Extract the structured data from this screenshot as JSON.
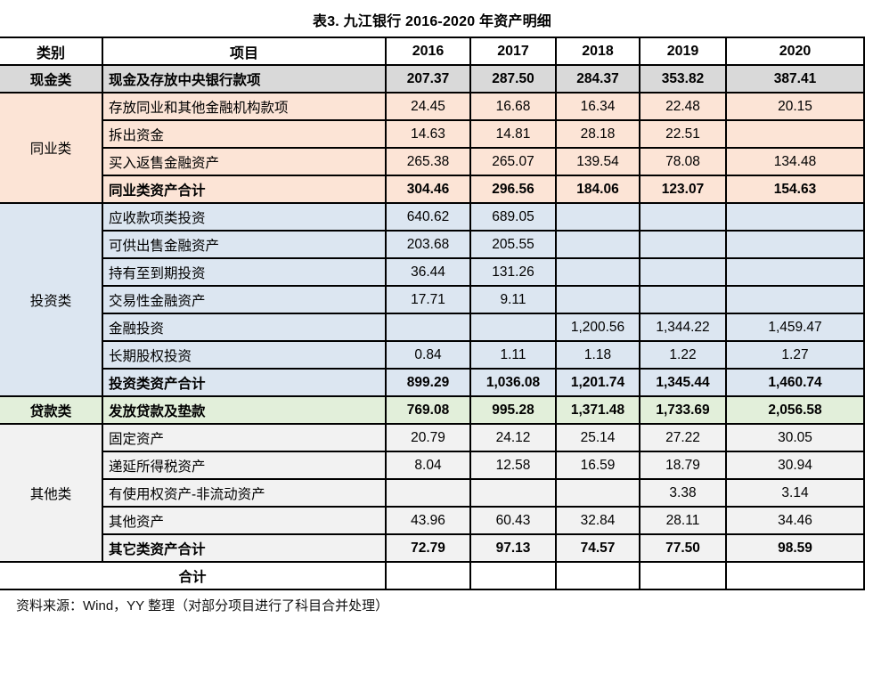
{
  "title": "表3. 九江银行 2016-2020 年资产明细",
  "columns": [
    "类别",
    "项目",
    "2016",
    "2017",
    "2018",
    "2019",
    "2020"
  ],
  "colors": {
    "cash_bg": "#d9d9d9",
    "interbank_bg": "#fce4d6",
    "investment_bg": "#dce6f1",
    "loan_bg": "#e2efda",
    "other_bg": "#f2f2f2",
    "total_bg": "#ffffff",
    "border": "#000000"
  },
  "sections": [
    {
      "category": "现金类",
      "category_bold": true,
      "style": "cash_bg",
      "rows": [
        {
          "item": "现金及存放中央银行款项",
          "bold": true,
          "values": [
            "207.37",
            "287.50",
            "284.37",
            "353.82",
            "387.41"
          ]
        }
      ]
    },
    {
      "category": "同业类",
      "category_bold": false,
      "style": "interbank_bg",
      "rows": [
        {
          "item": "存放同业和其他金融机构款项",
          "bold": false,
          "values": [
            "24.45",
            "16.68",
            "16.34",
            "22.48",
            "20.15"
          ]
        },
        {
          "item": "拆出资金",
          "bold": false,
          "values": [
            "14.63",
            "14.81",
            "28.18",
            "22.51",
            ""
          ]
        },
        {
          "item": "买入返售金融资产",
          "bold": false,
          "values": [
            "265.38",
            "265.07",
            "139.54",
            "78.08",
            "134.48"
          ]
        },
        {
          "item": "同业类资产合计",
          "bold": true,
          "values": [
            "304.46",
            "296.56",
            "184.06",
            "123.07",
            "154.63"
          ]
        }
      ]
    },
    {
      "category": "投资类",
      "category_bold": false,
      "style": "investment_bg",
      "rows": [
        {
          "item": "应收款项类投资",
          "bold": false,
          "values": [
            "640.62",
            "689.05",
            "",
            "",
            ""
          ]
        },
        {
          "item": "可供出售金融资产",
          "bold": false,
          "values": [
            "203.68",
            "205.55",
            "",
            "",
            ""
          ]
        },
        {
          "item": "持有至到期投资",
          "bold": false,
          "values": [
            "36.44",
            "131.26",
            "",
            "",
            ""
          ]
        },
        {
          "item": "交易性金融资产",
          "bold": false,
          "values": [
            "17.71",
            "9.11",
            "",
            "",
            ""
          ]
        },
        {
          "item": "金融投资",
          "bold": false,
          "values": [
            "",
            "",
            "1,200.56",
            "1,344.22",
            "1,459.47"
          ]
        },
        {
          "item": "长期股权投资",
          "bold": false,
          "values": [
            "0.84",
            "1.11",
            "1.18",
            "1.22",
            "1.27"
          ]
        },
        {
          "item": "投资类资产合计",
          "bold": true,
          "values": [
            "899.29",
            "1,036.08",
            "1,201.74",
            "1,345.44",
            "1,460.74"
          ]
        }
      ]
    },
    {
      "category": "贷款类",
      "category_bold": true,
      "style": "loan_bg",
      "rows": [
        {
          "item": "发放贷款及垫款",
          "bold": true,
          "values": [
            "769.08",
            "995.28",
            "1,371.48",
            "1,733.69",
            "2,056.58"
          ]
        }
      ]
    },
    {
      "category": "其他类",
      "category_bold": false,
      "style": "other_bg",
      "rows": [
        {
          "item": "固定资产",
          "bold": false,
          "values": [
            "20.79",
            "24.12",
            "25.14",
            "27.22",
            "30.05"
          ]
        },
        {
          "item": "递延所得税资产",
          "bold": false,
          "values": [
            "8.04",
            "12.58",
            "16.59",
            "18.79",
            "30.94"
          ]
        },
        {
          "item": "有使用权资产-非流动资产",
          "bold": false,
          "values": [
            "",
            "",
            "",
            "3.38",
            "3.14"
          ]
        },
        {
          "item": "其他资产",
          "bold": false,
          "values": [
            "43.96",
            "60.43",
            "32.84",
            "28.11",
            "34.46"
          ]
        },
        {
          "item": "其它类资产合计",
          "bold": true,
          "values": [
            "72.79",
            "97.13",
            "74.57",
            "77.50",
            "98.59"
          ]
        }
      ]
    }
  ],
  "total_row": {
    "label": "合计",
    "values": [
      "",
      "",
      "",
      "",
      ""
    ]
  },
  "footer": "资料来源：Wind，YY 整理（对部分项目进行了科目合并处理）"
}
